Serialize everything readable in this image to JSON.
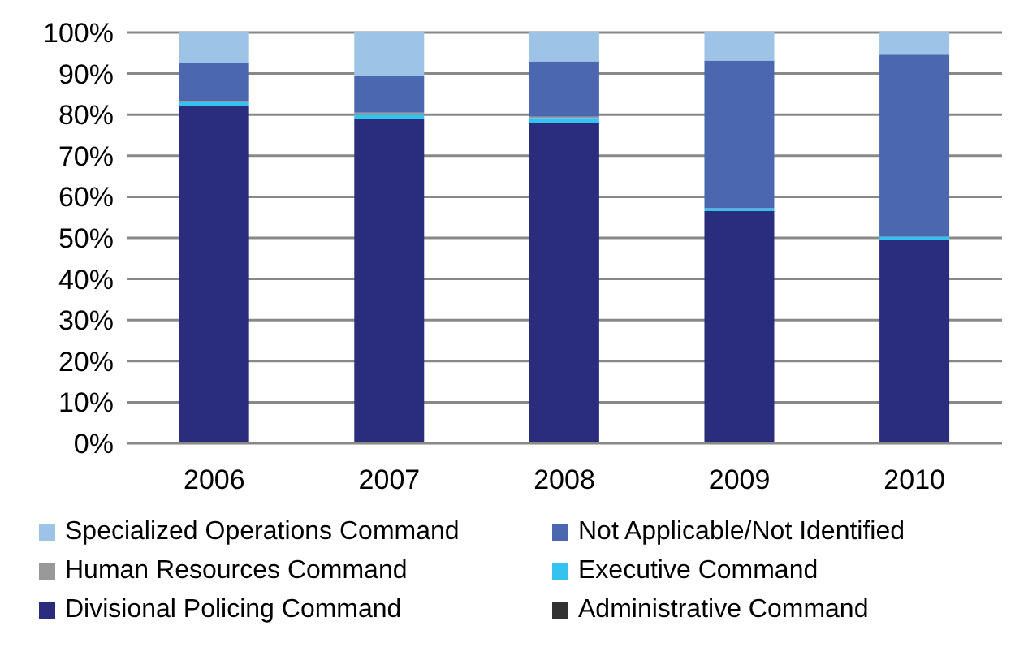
{
  "chart_data": {
    "type": "bar",
    "stacked": true,
    "categories": [
      "2006",
      "2007",
      "2008",
      "2009",
      "2010"
    ],
    "series": [
      {
        "name": "Administrative Command",
        "color": "#333333",
        "values": [
          0,
          0,
          0,
          0,
          0
        ]
      },
      {
        "name": "Divisional Policing Command",
        "color": "#2a2d7c",
        "values": [
          82,
          79,
          78,
          56.5,
          49.5
        ]
      },
      {
        "name": "Executive Command",
        "color": "#33c3ee",
        "values": [
          1,
          1,
          1.2,
          0.7,
          0.8
        ]
      },
      {
        "name": "Human Resources Command",
        "color": "#999999",
        "values": [
          0.3,
          0.5,
          0.3,
          0,
          0
        ]
      },
      {
        "name": "Not Applicable/Not Identified",
        "color": "#4a67b0",
        "values": [
          9.4,
          9,
          13.5,
          36,
          44.3
        ]
      },
      {
        "name": "Specialized Operations Command",
        "color": "#9dc3e6",
        "values": [
          7.3,
          10.5,
          7,
          6.8,
          5.4
        ]
      }
    ],
    "ylim": [
      0,
      100
    ],
    "yticks": [
      {
        "value": 0,
        "label": "0%"
      },
      {
        "value": 10,
        "label": "10%"
      },
      {
        "value": 20,
        "label": "20%"
      },
      {
        "value": 30,
        "label": "30%"
      },
      {
        "value": 40,
        "label": "40%"
      },
      {
        "value": 50,
        "label": "50%"
      },
      {
        "value": 60,
        "label": "60%"
      },
      {
        "value": 70,
        "label": "70%"
      },
      {
        "value": 80,
        "label": "80%"
      },
      {
        "value": 90,
        "label": "90%"
      },
      {
        "value": 100,
        "label": "100%"
      }
    ],
    "grid": "y",
    "legend": "bottom"
  }
}
